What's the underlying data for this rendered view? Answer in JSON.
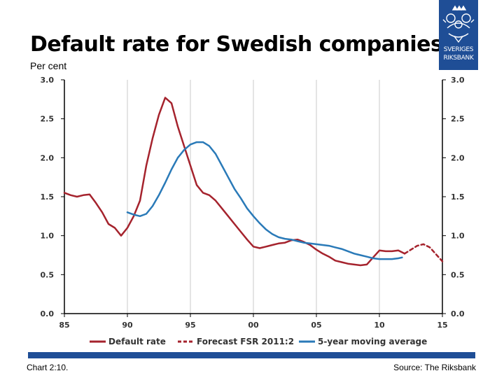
{
  "header": {
    "title": "Default rate for Swedish companies",
    "subtitle": "Per cent"
  },
  "logo": {
    "name": "riksbank-logo",
    "line1": "SVERIGES",
    "line2": "RIKSBANK"
  },
  "footer": {
    "chart_id": "Chart 2:10.",
    "source": "Source: The Riksbank"
  },
  "colors": {
    "default_rate": "#a5232d",
    "moving_average": "#2a7ab8",
    "brand": "#1f4e96"
  },
  "chart_data": {
    "type": "line",
    "title": "Default rate for Swedish companies",
    "ylabel": "Per cent",
    "xlim": [
      1985,
      2015
    ],
    "ylim": [
      0,
      3
    ],
    "x_ticks": [
      "85",
      "90",
      "95",
      "00",
      "05",
      "10",
      "15"
    ],
    "y_ticks": [
      "0.0",
      "0.5",
      "1.0",
      "1.5",
      "2.0",
      "2.5",
      "3.0"
    ],
    "grid": "vertical",
    "legend_position": "bottom",
    "series": [
      {
        "name": "Default rate",
        "style": "solid",
        "points": [
          [
            1985.0,
            1.55
          ],
          [
            1985.5,
            1.52
          ],
          [
            1986.0,
            1.5
          ],
          [
            1986.5,
            1.52
          ],
          [
            1987.0,
            1.53
          ],
          [
            1987.5,
            1.42
          ],
          [
            1988.0,
            1.3
          ],
          [
            1988.5,
            1.15
          ],
          [
            1989.0,
            1.1
          ],
          [
            1989.5,
            1.0
          ],
          [
            1990.0,
            1.1
          ],
          [
            1990.5,
            1.25
          ],
          [
            1991.0,
            1.45
          ],
          [
            1991.5,
            1.9
          ],
          [
            1992.0,
            2.25
          ],
          [
            1992.5,
            2.55
          ],
          [
            1993.0,
            2.77
          ],
          [
            1993.5,
            2.7
          ],
          [
            1994.0,
            2.4
          ],
          [
            1994.5,
            2.15
          ],
          [
            1995.0,
            1.9
          ],
          [
            1995.5,
            1.65
          ],
          [
            1996.0,
            1.55
          ],
          [
            1996.5,
            1.52
          ],
          [
            1997.0,
            1.45
          ],
          [
            1997.5,
            1.35
          ],
          [
            1998.0,
            1.25
          ],
          [
            1998.5,
            1.15
          ],
          [
            1999.0,
            1.05
          ],
          [
            1999.5,
            0.95
          ],
          [
            2000.0,
            0.86
          ],
          [
            2000.5,
            0.84
          ],
          [
            2001.0,
            0.86
          ],
          [
            2001.5,
            0.88
          ],
          [
            2002.0,
            0.9
          ],
          [
            2002.5,
            0.91
          ],
          [
            2003.0,
            0.94
          ],
          [
            2003.5,
            0.95
          ],
          [
            2004.0,
            0.92
          ],
          [
            2004.5,
            0.88
          ],
          [
            2005.0,
            0.82
          ],
          [
            2005.5,
            0.77
          ],
          [
            2006.0,
            0.73
          ],
          [
            2006.5,
            0.68
          ],
          [
            2007.0,
            0.66
          ],
          [
            2007.5,
            0.64
          ],
          [
            2008.0,
            0.63
          ],
          [
            2008.5,
            0.62
          ],
          [
            2009.0,
            0.63
          ],
          [
            2009.5,
            0.72
          ],
          [
            2010.0,
            0.81
          ],
          [
            2010.5,
            0.8
          ],
          [
            2011.0,
            0.8
          ],
          [
            2011.5,
            0.81
          ],
          [
            2012.0,
            0.77
          ]
        ]
      },
      {
        "name": "Forecast FSR 2011:2",
        "style": "dashed",
        "points": [
          [
            2012.0,
            0.77
          ],
          [
            2012.5,
            0.82
          ],
          [
            2013.0,
            0.87
          ],
          [
            2013.5,
            0.89
          ],
          [
            2014.0,
            0.85
          ],
          [
            2014.5,
            0.76
          ],
          [
            2015.0,
            0.67
          ]
        ]
      },
      {
        "name": "5-year moving average",
        "style": "solid",
        "points": [
          [
            1990.0,
            1.3
          ],
          [
            1990.5,
            1.27
          ],
          [
            1991.0,
            1.25
          ],
          [
            1991.5,
            1.28
          ],
          [
            1992.0,
            1.38
          ],
          [
            1992.5,
            1.52
          ],
          [
            1993.0,
            1.68
          ],
          [
            1993.5,
            1.85
          ],
          [
            1994.0,
            2.0
          ],
          [
            1994.5,
            2.1
          ],
          [
            1995.0,
            2.17
          ],
          [
            1995.5,
            2.2
          ],
          [
            1996.0,
            2.2
          ],
          [
            1996.5,
            2.15
          ],
          [
            1997.0,
            2.05
          ],
          [
            1997.5,
            1.9
          ],
          [
            1998.0,
            1.75
          ],
          [
            1998.5,
            1.6
          ],
          [
            1999.0,
            1.48
          ],
          [
            1999.5,
            1.35
          ],
          [
            2000.0,
            1.25
          ],
          [
            2000.5,
            1.16
          ],
          [
            2001.0,
            1.08
          ],
          [
            2001.5,
            1.02
          ],
          [
            2002.0,
            0.98
          ],
          [
            2002.5,
            0.96
          ],
          [
            2003.0,
            0.95
          ],
          [
            2003.5,
            0.93
          ],
          [
            2004.0,
            0.91
          ],
          [
            2004.5,
            0.9
          ],
          [
            2005.0,
            0.89
          ],
          [
            2005.5,
            0.88
          ],
          [
            2006.0,
            0.87
          ],
          [
            2006.5,
            0.85
          ],
          [
            2007.0,
            0.83
          ],
          [
            2007.5,
            0.8
          ],
          [
            2008.0,
            0.77
          ],
          [
            2008.5,
            0.75
          ],
          [
            2009.0,
            0.73
          ],
          [
            2009.5,
            0.71
          ],
          [
            2010.0,
            0.7
          ],
          [
            2010.5,
            0.7
          ],
          [
            2011.0,
            0.7
          ],
          [
            2011.5,
            0.71
          ],
          [
            2011.8,
            0.72
          ]
        ]
      }
    ]
  }
}
